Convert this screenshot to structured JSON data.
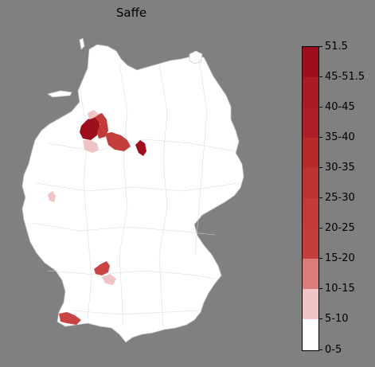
{
  "title": "Saffe",
  "colors": {
    "background": "#808080",
    "land": "#ffffff",
    "border": "#c8c8c8",
    "legend_swatches": [
      "#ffffff",
      "#f0c4c4",
      "#dc7b7b",
      "#c94545",
      "#c94545",
      "#c43e3e",
      "#c23a3a",
      "#bd3333",
      "#b62a2a",
      "#ad1f28",
      "#a81a24",
      "#9e0f1e"
    ]
  },
  "legend": {
    "labels": [
      "0-5",
      "5-10",
      "10-15",
      "15-20",
      "20-25",
      "25-30",
      "30-35",
      "35-40",
      "40-45",
      "45-51.5",
      "51.5"
    ]
  }
}
